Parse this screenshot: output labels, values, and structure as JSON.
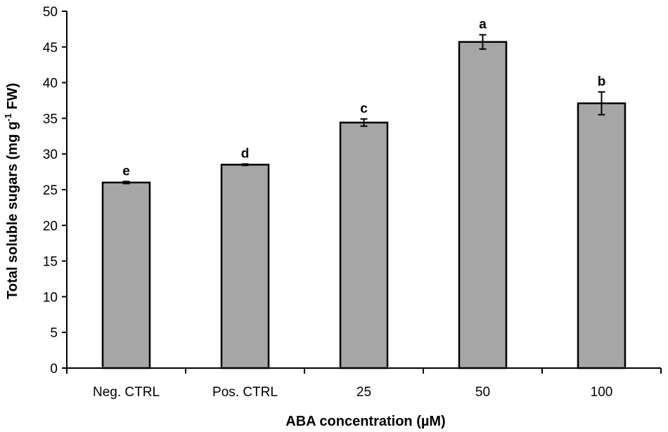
{
  "chart_data": {
    "type": "bar",
    "categories": [
      "Neg. CTRL",
      "Pos. CTRL",
      "25",
      "50",
      "100"
    ],
    "values": [
      26.0,
      28.5,
      34.4,
      45.7,
      37.1
    ],
    "errors": [
      0.15,
      0.1,
      0.5,
      1.0,
      1.6
    ],
    "significance": [
      "e",
      "d",
      "c",
      "a",
      "b"
    ],
    "title": "",
    "xlabel": "ABA concentration (µM)",
    "ylabel_main": "Total soluble sugars (mg g",
    "ylabel_sup": "-1",
    "ylabel_tail": " FW)",
    "ylim": [
      0,
      50
    ],
    "yticks": [
      0,
      5,
      10,
      15,
      20,
      25,
      30,
      35,
      40,
      45,
      50
    ],
    "bar_color": "#a6a6a6",
    "grid": false,
    "legend": "none"
  }
}
